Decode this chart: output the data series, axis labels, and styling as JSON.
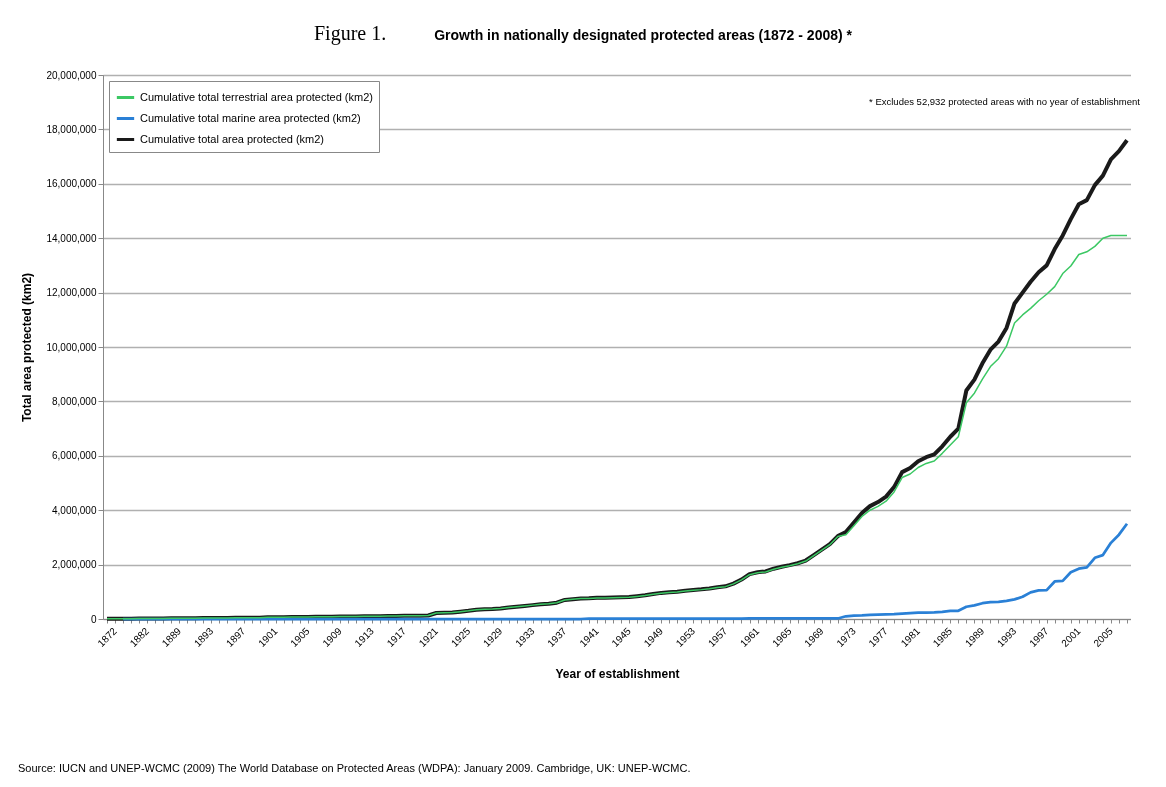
{
  "chart_data": {
    "type": "line",
    "title": "Growth in nationally designated protected areas (1872 - 2008) *",
    "xlabel": "Year of establishment",
    "ylabel": "Total area protected (km2)",
    "annotations": [
      "Figure 1.",
      "* Excludes 52,932 protected areas with no year of establishment",
      "Source: IUCN and UNEP-WCMC (2009) The World Database on Protected Areas (WDPA): January 2009. Cambridge, UK: UNEP-WCMC."
    ],
    "categories": [
      "1872",
      null,
      null,
      null,
      "1882",
      null,
      null,
      null,
      "1889",
      null,
      null,
      null,
      "1893",
      null,
      null,
      null,
      "1897",
      null,
      null,
      null,
      "1901",
      null,
      null,
      null,
      "1905",
      null,
      null,
      null,
      "1909",
      null,
      null,
      null,
      "1913",
      null,
      null,
      null,
      "1917",
      null,
      null,
      null,
      "1921",
      null,
      null,
      null,
      "1925",
      null,
      null,
      null,
      "1929",
      null,
      null,
      null,
      "1933",
      null,
      null,
      null,
      "1937",
      null,
      null,
      null,
      "1941",
      null,
      null,
      null,
      "1945",
      null,
      null,
      null,
      "1949",
      null,
      null,
      null,
      "1953",
      null,
      null,
      null,
      "1957",
      null,
      null,
      null,
      "1961",
      null,
      null,
      null,
      "1965",
      null,
      null,
      null,
      "1969",
      null,
      null,
      null,
      "1973",
      null,
      null,
      null,
      "1977",
      null,
      null,
      null,
      "1981",
      null,
      null,
      null,
      "1985",
      null,
      null,
      null,
      "1989",
      null,
      null,
      null,
      "1993",
      null,
      null,
      null,
      "1997",
      null,
      null,
      null,
      "2001",
      null,
      null,
      null,
      "2005",
      null,
      null,
      null
    ],
    "series": [
      {
        "name": "Cumulative total terrestrial area protected (km2)",
        "color": "#3cc864",
        "values": [
          10000,
          10000,
          10000,
          10000,
          20000,
          20000,
          20000,
          20000,
          30000,
          30000,
          30000,
          30000,
          40000,
          40000,
          40000,
          40000,
          50000,
          50000,
          50000,
          50000,
          60000,
          60000,
          60000,
          70000,
          70000,
          70000,
          80000,
          80000,
          80000,
          90000,
          90000,
          90000,
          100000,
          100000,
          100000,
          110000,
          110000,
          120000,
          120000,
          120000,
          130000,
          220000,
          230000,
          240000,
          270000,
          300000,
          340000,
          360000,
          370000,
          390000,
          420000,
          450000,
          480000,
          510000,
          540000,
          560000,
          600000,
          700000,
          730000,
          750000,
          750000,
          770000,
          770000,
          780000,
          790000,
          800000,
          830000,
          860000,
          910000,
          950000,
          970000,
          990000,
          1030000,
          1060000,
          1080000,
          1110000,
          1160000,
          1190000,
          1290000,
          1440000,
          1630000,
          1700000,
          1730000,
          1830000,
          1900000,
          1960000,
          2030000,
          2130000,
          2330000,
          2530000,
          2730000,
          3030000,
          3100000,
          3430000,
          3770000,
          4000000,
          4140000,
          4330000,
          4670000,
          5200000,
          5330000,
          5570000,
          5720000,
          5810000,
          6090000,
          6400000,
          6700000,
          7950000,
          8300000,
          8820000,
          9280000,
          9570000,
          10030000,
          10880000,
          11180000,
          11420000,
          11700000,
          11940000,
          12220000,
          12700000,
          12980000,
          13400000,
          13500000,
          13700000,
          14000000,
          14100000,
          14100000,
          14100000
        ]
      },
      {
        "name": "Cumulative total marine area protected (km2)",
        "color": "#2a80d6",
        "values": [
          null,
          null,
          0,
          0,
          0,
          0,
          0,
          0,
          0,
          0,
          0,
          0,
          0,
          0,
          0,
          0,
          0,
          0,
          0,
          0,
          0,
          0,
          0,
          0,
          0,
          0,
          0,
          0,
          0,
          0,
          0,
          0,
          0,
          0,
          0,
          0,
          0,
          0,
          0,
          0,
          0,
          0,
          0,
          0,
          0,
          0,
          0,
          0,
          0,
          0,
          0,
          0,
          0,
          0,
          0,
          0,
          0,
          0,
          0,
          0,
          10000,
          10000,
          10000,
          10000,
          10000,
          10000,
          10000,
          10000,
          10000,
          10000,
          10000,
          10000,
          10000,
          10000,
          10000,
          10000,
          10000,
          10000,
          10000,
          10000,
          20000,
          20000,
          20000,
          20000,
          20000,
          20000,
          20000,
          20000,
          20000,
          20000,
          20000,
          20000,
          100000,
          120000,
          130000,
          150000,
          160000,
          170000,
          180000,
          200000,
          220000,
          230000,
          230000,
          240000,
          260000,
          300000,
          300000,
          450000,
          500000,
          580000,
          620000,
          630000,
          670000,
          720000,
          820000,
          980000,
          1050000,
          1060000,
          1380000,
          1400000,
          1720000,
          1850000,
          1900000,
          2250000,
          2350000,
          2800000,
          3100000,
          3500000
        ]
      },
      {
        "name": "Cumulative total area protected (km2)",
        "color": "#1a1a1a",
        "values": [
          10000,
          10000,
          10000,
          10000,
          20000,
          20000,
          20000,
          20000,
          30000,
          30000,
          30000,
          30000,
          40000,
          40000,
          40000,
          40000,
          50000,
          50000,
          50000,
          50000,
          60000,
          60000,
          60000,
          70000,
          70000,
          70000,
          80000,
          80000,
          80000,
          90000,
          90000,
          90000,
          100000,
          100000,
          100000,
          110000,
          110000,
          120000,
          120000,
          120000,
          130000,
          220000,
          230000,
          240000,
          270000,
          300000,
          340000,
          360000,
          370000,
          390000,
          420000,
          450000,
          480000,
          510000,
          540000,
          560000,
          600000,
          700000,
          730000,
          750000,
          760000,
          780000,
          780000,
          790000,
          800000,
          810000,
          840000,
          870000,
          920000,
          960000,
          980000,
          1000000,
          1040000,
          1070000,
          1090000,
          1120000,
          1170000,
          1200000,
          1300000,
          1450000,
          1650000,
          1720000,
          1750000,
          1850000,
          1920000,
          1980000,
          2050000,
          2150000,
          2350000,
          2550000,
          2750000,
          3050000,
          3200000,
          3550000,
          3900000,
          4150000,
          4300000,
          4500000,
          4850000,
          5400000,
          5550000,
          5800000,
          5950000,
          6050000,
          6350000,
          6700000,
          7000000,
          8400000,
          8800000,
          9400000,
          9900000,
          10200000,
          10700000,
          11600000,
          12000000,
          12400000,
          12750000,
          13000000,
          13600000,
          14100000,
          14700000,
          15250000,
          15400000,
          15950000,
          16300000,
          16900000,
          17200000,
          17600000
        ]
      }
    ],
    "ylim": [
      0,
      20000000
    ],
    "yticks": [
      0,
      {
        "value": 2000000,
        "label": "2,000,000"
      },
      {
        "value": 4000000,
        "label": "4,000,000"
      },
      {
        "value": 6000000,
        "label": "6,000,000"
      },
      {
        "value": 8000000,
        "label": "8,000,000"
      },
      {
        "value": 10000000,
        "label": "10,000,000"
      },
      {
        "value": 12000000,
        "label": "12,000,000"
      },
      {
        "value": 14000000,
        "label": "14,000,000"
      },
      {
        "value": 16000000,
        "label": "16,000,000"
      },
      {
        "value": 18000000,
        "label": "18,000,000"
      },
      {
        "value": 20000000,
        "label": "20,000,000"
      }
    ],
    "grid": "y",
    "legend": "top left"
  }
}
